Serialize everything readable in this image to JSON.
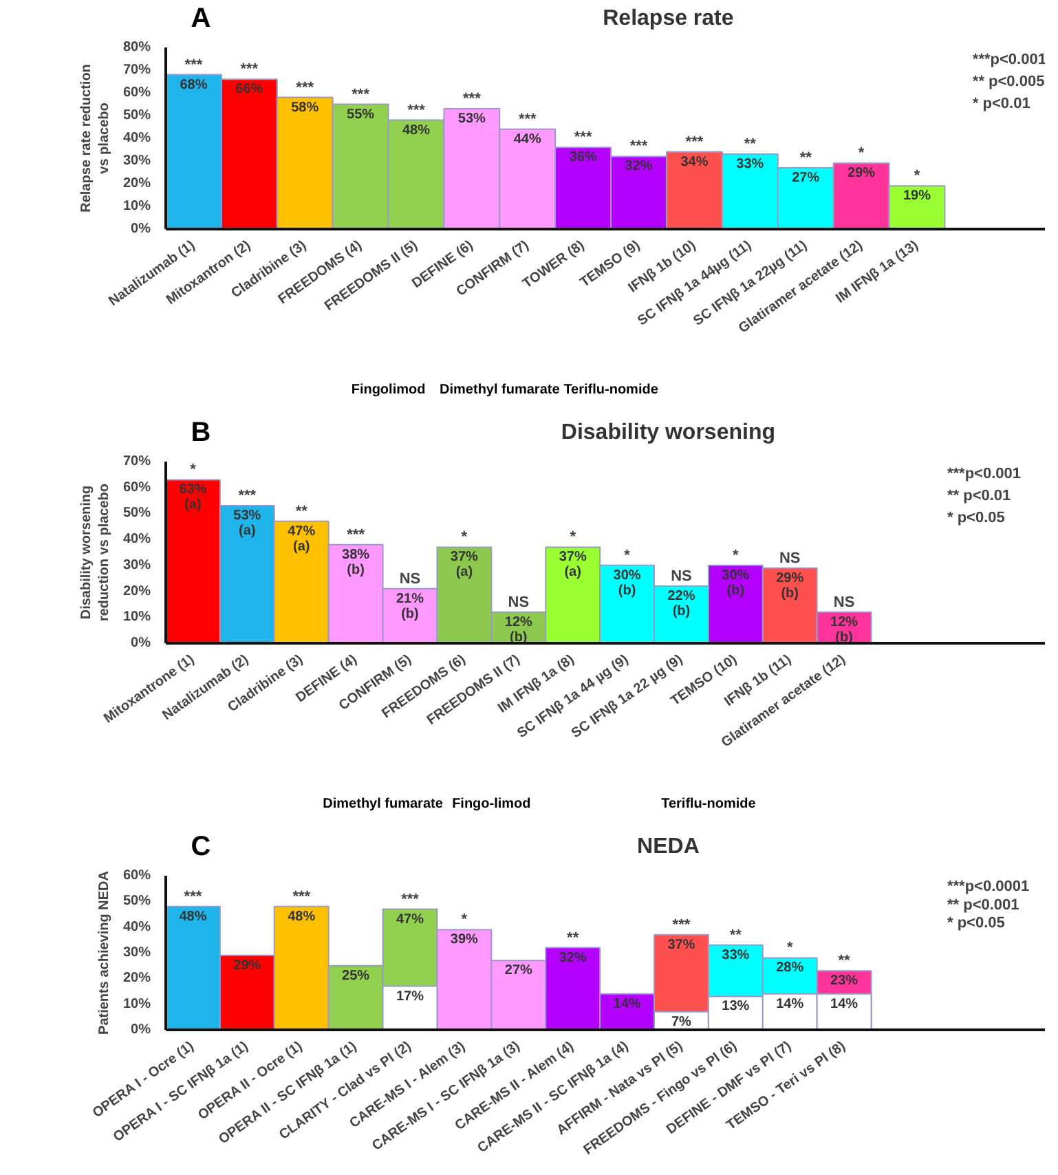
{
  "chart_data": [
    {
      "type": "bar",
      "title": "Relapse rate",
      "ylabel": "Relapse rate reduction\nvs placebo",
      "categories": [
        "Natalizumab (1)",
        "Mitoxantron (2)",
        "Cladribine (3)",
        "FREEDOMS (4)",
        "FREEDOMS II (5)",
        "DEFINE (6)",
        "CONFIRM (7)",
        "TOWER (8)",
        "TEMSO (9)",
        "IFNβ 1b (10)",
        "SC IFNβ 1a 44µg (11)",
        "SC IFNβ 1a 22µg (11)",
        "Glatiramer acetate (12)",
        "IM IFNβ 1a (13)"
      ],
      "series": [
        {
          "colors": [
            "#1fb5ea",
            "#ff0000",
            "#ffc000",
            "#92d050",
            "#92d050",
            "#ff99ff",
            "#ff99ff",
            "#b300ff",
            "#b300ff",
            "#ff5050",
            "#00ffff",
            "#00ffff",
            "#ff3399",
            "#99ff33"
          ],
          "values": [
            68,
            66,
            58,
            55,
            48,
            53,
            44,
            36,
            32,
            34,
            33,
            27,
            29,
            19
          ],
          "value_labels": [
            "68%",
            "66%",
            "58%",
            "55%",
            "48%",
            "53%",
            "44%",
            "36%",
            "32%",
            "34%",
            "33%",
            "27%",
            "29%",
            "19%"
          ]
        }
      ],
      "ylim": [
        0,
        80
      ],
      "yticks": [
        {
          "value": 0,
          "label": "0%"
        },
        {
          "value": 10,
          "label": "10%"
        },
        {
          "value": 20,
          "label": "20%"
        },
        {
          "value": 30,
          "label": "30%"
        },
        {
          "value": 40,
          "label": "40%"
        },
        {
          "value": 50,
          "label": "50%"
        },
        {
          "value": 60,
          "label": "60%"
        },
        {
          "value": 70,
          "label": "70%"
        },
        {
          "value": 80,
          "label": "80%"
        }
      ],
      "annotations": [
        "A",
        "***p<0.001",
        "**  p<0.005",
        "*    p<0.01",
        {
          "text": "***",
          "x": "Natalizumab (1)",
          "y": 68
        },
        {
          "text": "***",
          "x": "Mitoxantron (2)",
          "y": 66
        },
        {
          "text": "***",
          "x": "Cladribine (3)",
          "y": 58
        },
        {
          "text": "***",
          "x": "FREEDOMS (4)",
          "y": 55
        },
        {
          "text": "***",
          "x": "FREEDOMS II (5)",
          "y": 48
        },
        {
          "text": "***",
          "x": "DEFINE (6)",
          "y": 53
        },
        {
          "text": "***",
          "x": "CONFIRM (7)",
          "y": 44
        },
        {
          "text": "***",
          "x": "TOWER (8)",
          "y": 36
        },
        {
          "text": "***",
          "x": "TEMSO (9)",
          "y": 32
        },
        {
          "text": "***",
          "x": "IFNβ 1b (10)",
          "y": 34
        },
        {
          "text": "**",
          "x": "SC IFNβ 1a 44µg (11)",
          "y": 33
        },
        {
          "text": "**",
          "x": "SC IFNβ 1a 22µg (11)",
          "y": 27
        },
        {
          "text": "*",
          "x": "Glatiramer acetate (12)",
          "y": 29
        },
        {
          "text": "*",
          "x": "IM IFNβ 1a (13)",
          "y": 19
        },
        "Fingolimod",
        "Dimethyl fumarate",
        "Teriflu-nomide"
      ]
    },
    {
      "type": "bar",
      "title": "Disability worsening",
      "ylabel": "Disability worsening\nreduction vs placebo",
      "categories": [
        "Mitoxantrone (1)",
        "Natalizumab (2)",
        "Cladribine (3)",
        "DEFINE (4)",
        "CONFIRM (5)",
        "FREEDOMS (6)",
        "FREEDOMS II (7)",
        "IM IFNβ 1a (8)",
        "SC IFNβ 1a 44 µg (9)",
        "SC IFNβ 1a 22 µg (9)",
        "TEMSO (10)",
        "IFNβ 1b (11)",
        "Glatiramer acetate (12)"
      ],
      "series": [
        {
          "colors": [
            "#ff0000",
            "#1fb5ea",
            "#ffc000",
            "#ff99ff",
            "#ff99ff",
            "#8cc94e",
            "#8cc94e",
            "#99ff33",
            "#00ffff",
            "#00ffff",
            "#b300ff",
            "#ff5050",
            "#ff3399"
          ],
          "values": [
            63,
            53,
            47,
            38,
            21,
            37,
            12,
            37,
            30,
            22,
            30,
            29,
            12
          ],
          "value_labels": [
            "63%\n(a)",
            "53%\n(a)",
            "47%\n(a)",
            "38%\n(b)",
            "21%\n(b)",
            "37%\n(a)",
            "12%\n(b)",
            "37%\n(a)",
            "30%\n(b)",
            "22%\n(b)",
            "30%\n(b)",
            "29%\n(b)",
            "12%\n(b)"
          ]
        }
      ],
      "ylim": [
        0,
        70
      ],
      "yticks": [
        {
          "value": 0,
          "label": "0%"
        },
        {
          "value": 10,
          "label": "10%"
        },
        {
          "value": 20,
          "label": "20%"
        },
        {
          "value": 30,
          "label": "30%"
        },
        {
          "value": 40,
          "label": "40%"
        },
        {
          "value": 50,
          "label": "50%"
        },
        {
          "value": 60,
          "label": "60%"
        },
        {
          "value": 70,
          "label": "70%"
        }
      ],
      "annotations": [
        "B",
        "***p<0.001",
        "**  p<0.01",
        "*    p<0.05",
        {
          "text": "*",
          "x": "Mitoxantrone (1)",
          "y": 63
        },
        {
          "text": "***",
          "x": "Natalizumab (2)",
          "y": 53
        },
        {
          "text": "**",
          "x": "Cladribine (3)",
          "y": 47
        },
        {
          "text": "***",
          "x": "DEFINE (4)",
          "y": 38
        },
        {
          "text": "NS",
          "x": "CONFIRM (5)",
          "y": 21
        },
        {
          "text": "*",
          "x": "FREEDOMS (6)",
          "y": 37
        },
        {
          "text": "NS",
          "x": "FREEDOMS II (7)",
          "y": 12
        },
        {
          "text": "*",
          "x": "IM IFNβ 1a (8)",
          "y": 37
        },
        {
          "text": "*",
          "x": "SC IFNβ 1a 44 µg (9)",
          "y": 30
        },
        {
          "text": "NS",
          "x": "SC IFNβ 1a 22 µg (9)",
          "y": 22
        },
        {
          "text": "*",
          "x": "TEMSO (10)",
          "y": 30
        },
        {
          "text": "NS",
          "x": "IFNβ 1b (11)",
          "y": 29
        },
        {
          "text": "NS",
          "x": "Glatiramer acetate (12)",
          "y": 12
        },
        "Dimethyl fumarate",
        "Fingo-limod",
        "Teriflu-nomide"
      ]
    },
    {
      "type": "bar",
      "title": "NEDA",
      "ylabel": "Patients achieving NEDA",
      "categories": [
        "OPERA I - Ocre (1)",
        "OPERA I - SC IFNβ 1a (1)",
        "OPERA II - Ocre (1)",
        "OPERA II - SC IFNβ 1a (1)",
        "CLARITY - Clad vs Pl (2)",
        "CARE-MS I - Alem (3)",
        "CARE-MS I - SC IFNβ 1a (3)",
        "CARE-MS II - Alem (4)",
        "CARE-MS II - SC IFNβ 1a (4)",
        "AFFIRM - Nata vs Pl (5)",
        "FREEDOMS - Fingo vs Pl (6)",
        "DEFINE - DMF vs Pl (7)",
        "TEMSO - Teri vs Pl (8)"
      ],
      "series": [
        {
          "colors": [
            "#1fb5ea",
            "#ff0000",
            "#ffc000",
            "#92d050",
            "#92d050",
            "#ff99ff",
            "#ff99ff",
            "#b300ff",
            "#b300ff",
            "#ff5050",
            "#00ffff",
            "#00ffff",
            "#ff3399"
          ],
          "values": [
            48,
            29,
            48,
            25,
            47,
            39,
            27,
            32,
            14,
            37,
            33,
            28,
            23
          ],
          "value_labels": [
            "48%",
            "29%",
            "48%",
            "25%",
            "47%",
            "39%",
            "27%",
            "32%",
            "14%",
            "37%",
            "33%",
            "28%",
            "23%"
          ]
        },
        {
          "color": "#ffffff",
          "values": [
            null,
            null,
            null,
            null,
            17,
            null,
            null,
            null,
            null,
            7,
            13,
            14,
            14
          ],
          "value_labels": [
            null,
            null,
            null,
            null,
            "17%",
            null,
            null,
            null,
            null,
            "7%",
            "13%",
            "14%",
            "14%"
          ]
        }
      ],
      "ylim": [
        0,
        60
      ],
      "yticks": [
        {
          "value": 0,
          "label": "0%"
        },
        {
          "value": 10,
          "label": "10%"
        },
        {
          "value": 20,
          "label": "20%"
        },
        {
          "value": 30,
          "label": "30%"
        },
        {
          "value": 40,
          "label": "40%"
        },
        {
          "value": 50,
          "label": "50%"
        },
        {
          "value": 60,
          "label": "60%"
        }
      ],
      "annotations": [
        "C",
        "***p<0.0001",
        "**  p<0.001",
        "*    p<0.05",
        {
          "text": "***",
          "x": "OPERA I - Ocre (1)",
          "y": 48
        },
        {
          "text": "***",
          "x": "OPERA II - Ocre (1)",
          "y": 48
        },
        {
          "text": "***",
          "x": "CLARITY - Clad vs Pl (2)",
          "y": 47
        },
        {
          "text": "*",
          "x": "CARE-MS I - Alem (3)",
          "y": 39
        },
        {
          "text": "**",
          "x": "CARE-MS II - Alem (4)",
          "y": 32
        },
        {
          "text": "***",
          "x": "AFFIRM - Nata vs Pl (5)",
          "y": 37
        },
        {
          "text": "**",
          "x": "FREEDOMS - Fingo vs Pl (6)",
          "y": 33
        },
        {
          "text": "*",
          "x": "DEFINE - DMF vs Pl (7)",
          "y": 28
        },
        {
          "text": "**",
          "x": "TEMSO - Teri vs Pl (8)",
          "y": 23
        }
      ]
    }
  ]
}
